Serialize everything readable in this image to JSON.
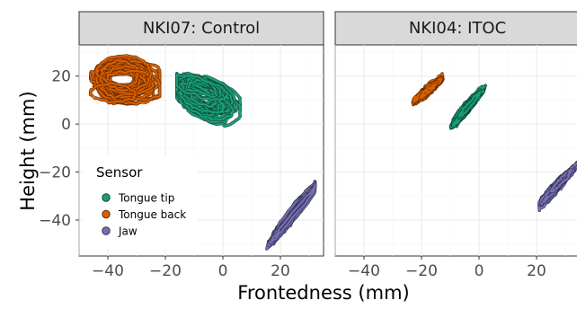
{
  "chart_data": {
    "type": "scatter",
    "xlabel": "Frontedness (mm)",
    "ylabel": "Height (mm)",
    "xlim": [
      -50,
      35
    ],
    "ylim": [
      -55,
      33
    ],
    "x_ticks": [
      -40,
      -20,
      0,
      20
    ],
    "y_ticks": [
      20,
      0,
      -20,
      -40
    ],
    "grid": true,
    "legend": {
      "title": "Sensor",
      "placement": "bottom-left inside first panel",
      "entries": [
        {
          "label": "Tongue tip",
          "color": "#1b9e77"
        },
        {
          "label": "Tongue back",
          "color": "#d95f02"
        },
        {
          "label": "Jaw",
          "color": "#7570b3"
        }
      ]
    },
    "panels": [
      {
        "title": "NKI07: Control",
        "series": [
          {
            "name": "Tongue tip",
            "color": "#1b9e77",
            "center": [
              -6,
              11
            ],
            "spread": [
              9,
              6
            ],
            "slope": -0.35,
            "x_range": [
              -16,
              6
            ],
            "y_range": [
              -6,
              24
            ]
          },
          {
            "name": "Tongue back",
            "color": "#d95f02",
            "center": [
              -34,
              18
            ],
            "spread": [
              11,
              6.5
            ],
            "slope": -0.05,
            "x_range": [
              -46,
              -22
            ],
            "y_range": [
              6,
              30
            ]
          },
          {
            "name": "Jaw",
            "color": "#7570b3",
            "center": [
              24,
              -38
            ],
            "spread": [
              7.5,
              1.8
            ],
            "slope": 1.45,
            "x_range": [
              14,
              32
            ],
            "y_range": [
              -53,
              -24
            ]
          }
        ]
      },
      {
        "title": "NKI04: ITOC",
        "series": [
          {
            "name": "Tongue tip",
            "color": "#1b9e77",
            "center": [
              -4,
              7
            ],
            "spread": [
              4.5,
              1.5
            ],
            "slope": 1.35,
            "x_range": [
              -11,
              3
            ],
            "y_range": [
              -2,
              18
            ]
          },
          {
            "name": "Tongue back",
            "color": "#d95f02",
            "center": [
              -18,
              14
            ],
            "spread": [
              4,
              1.2
            ],
            "slope": 0.95,
            "x_range": [
              -23,
              -12
            ],
            "y_range": [
              8,
              21
            ]
          },
          {
            "name": "Jaw",
            "color": "#7570b3",
            "center": [
              27,
              -26
            ],
            "spread": [
              5.5,
              1.4
            ],
            "slope": 1.25,
            "x_range": [
              21,
              34
            ],
            "y_range": [
              -36,
              -16
            ]
          }
        ]
      }
    ]
  }
}
